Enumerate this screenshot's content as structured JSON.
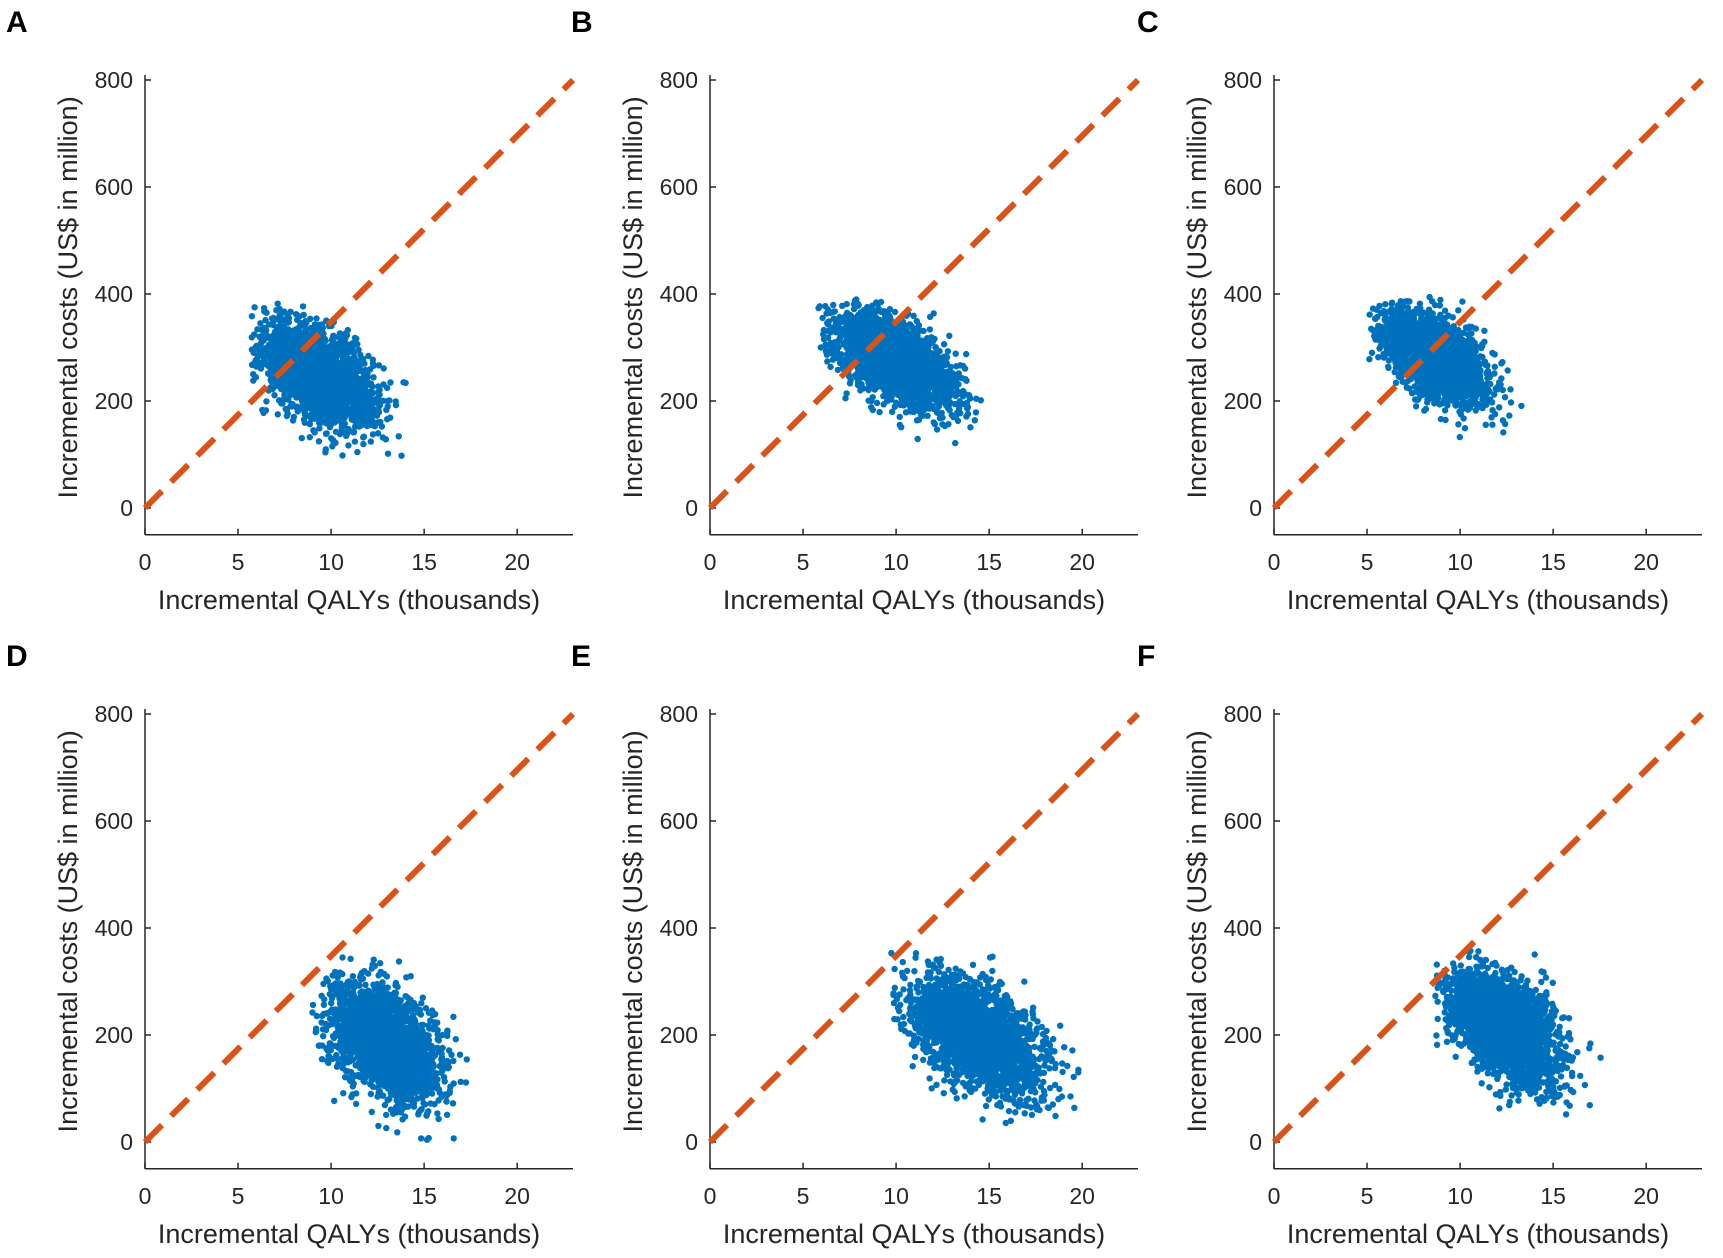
{
  "chart_data": [
    {
      "type": "scatter",
      "panel_label": "A",
      "xlabel": "Incremental QALYs (thousands)",
      "ylabel": "Incremental costs (US$ in million)",
      "xlim": [
        0,
        23
      ],
      "ylim": [
        -50,
        800
      ],
      "xticks": [
        0,
        5,
        10,
        15,
        20
      ],
      "yticks": [
        0,
        200,
        400,
        600,
        800
      ],
      "point_color": "#0072BD",
      "threshold_line": {
        "color": "#D95319",
        "style": "dashed",
        "x": [
          0,
          23
        ],
        "y": [
          0,
          800
        ]
      },
      "cloud": {
        "n_points": 2200,
        "x_mean": 9.3,
        "x_sd": 1.5,
        "y_mean": 250,
        "y_sd": 48,
        "correlation": -0.5,
        "x_range": [
          5.7,
          14.3
        ],
        "y_range": [
          60,
          385
        ]
      }
    },
    {
      "type": "scatter",
      "panel_label": "B",
      "xlabel": "Incremental QALYs (thousands)",
      "ylabel": "Incremental costs (US$ in million)",
      "xlim": [
        0,
        23
      ],
      "ylim": [
        -50,
        800
      ],
      "xticks": [
        0,
        5,
        10,
        15,
        20
      ],
      "yticks": [
        0,
        200,
        400,
        600,
        800
      ],
      "point_color": "#0072BD",
      "threshold_line": {
        "color": "#D95319",
        "style": "dashed",
        "x": [
          0,
          23
        ],
        "y": [
          0,
          800
        ]
      },
      "cloud": {
        "n_points": 2200,
        "x_mean": 9.9,
        "x_sd": 1.6,
        "y_mean": 275,
        "y_sd": 45,
        "correlation": -0.55,
        "x_range": [
          5.7,
          15.3
        ],
        "y_range": [
          95,
          390
        ]
      }
    },
    {
      "type": "scatter",
      "panel_label": "C",
      "xlabel": "Incremental QALYs (thousands)",
      "ylabel": "Incremental costs (US$ in million)",
      "xlim": [
        0,
        23
      ],
      "ylim": [
        -50,
        800
      ],
      "xticks": [
        0,
        5,
        10,
        15,
        20
      ],
      "yticks": [
        0,
        200,
        400,
        600,
        800
      ],
      "point_color": "#0072BD",
      "threshold_line": {
        "color": "#D95319",
        "style": "dashed",
        "x": [
          0,
          23
        ],
        "y": [
          0,
          800
        ]
      },
      "cloud": {
        "n_points": 2200,
        "x_mean": 8.6,
        "x_sd": 1.4,
        "y_mean": 282,
        "y_sd": 45,
        "correlation": -0.55,
        "x_range": [
          5.1,
          13.7
        ],
        "y_range": [
          105,
          395
        ]
      }
    },
    {
      "type": "scatter",
      "panel_label": "D",
      "xlabel": "Incremental QALYs (thousands)",
      "ylabel": "Incremental costs (US$ in million)",
      "xlim": [
        0,
        23
      ],
      "ylim": [
        -50,
        800
      ],
      "xticks": [
        0,
        5,
        10,
        15,
        20
      ],
      "yticks": [
        0,
        200,
        400,
        600,
        800
      ],
      "point_color": "#0072BD",
      "threshold_line": {
        "color": "#D95319",
        "style": "dashed",
        "x": [
          0,
          23
        ],
        "y": [
          0,
          800
        ]
      },
      "cloud": {
        "n_points": 2200,
        "x_mean": 12.9,
        "x_sd": 1.5,
        "y_mean": 185,
        "y_sd": 55,
        "correlation": -0.45,
        "x_range": [
          9.0,
          17.3
        ],
        "y_range": [
          -10,
          345
        ]
      }
    },
    {
      "type": "scatter",
      "panel_label": "E",
      "xlabel": "Incremental QALYs (thousands)",
      "ylabel": "Incremental costs (US$ in million)",
      "xlim": [
        0,
        23
      ],
      "ylim": [
        -50,
        800
      ],
      "xticks": [
        0,
        5,
        10,
        15,
        20
      ],
      "yticks": [
        0,
        200,
        400,
        600,
        800
      ],
      "point_color": "#0072BD",
      "threshold_line": {
        "color": "#D95319",
        "style": "dashed",
        "x": [
          0,
          23
        ],
        "y": [
          0,
          800
        ]
      },
      "cloud": {
        "n_points": 2200,
        "x_mean": 14.3,
        "x_sd": 1.8,
        "y_mean": 200,
        "y_sd": 55,
        "correlation": -0.5,
        "x_range": [
          9.7,
          19.8
        ],
        "y_range": [
          10,
          355
        ]
      }
    },
    {
      "type": "scatter",
      "panel_label": "F",
      "xlabel": "Incremental QALYs (thousands)",
      "ylabel": "Incremental costs (US$ in million)",
      "xlim": [
        0,
        23
      ],
      "ylim": [
        -50,
        800
      ],
      "xticks": [
        0,
        5,
        10,
        15,
        20
      ],
      "yticks": [
        0,
        200,
        400,
        600,
        800
      ],
      "point_color": "#0072BD",
      "threshold_line": {
        "color": "#D95319",
        "style": "dashed",
        "x": [
          0,
          23
        ],
        "y": [
          0,
          800
        ]
      },
      "cloud": {
        "n_points": 2200,
        "x_mean": 12.4,
        "x_sd": 1.5,
        "y_mean": 215,
        "y_sd": 52,
        "correlation": -0.5,
        "x_range": [
          8.6,
          17.6
        ],
        "y_range": [
          30,
          360
        ]
      }
    }
  ]
}
